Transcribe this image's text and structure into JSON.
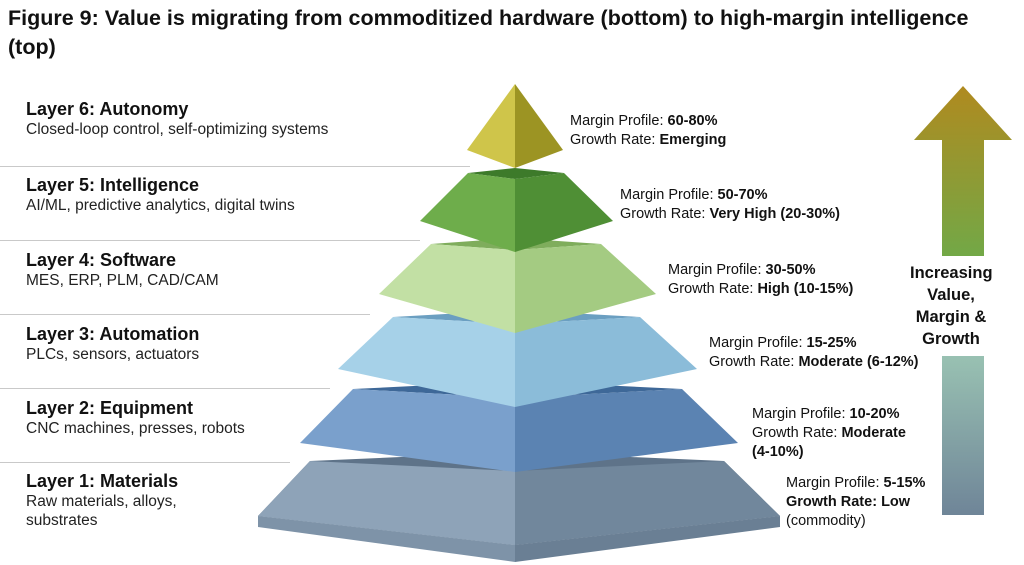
{
  "title": "Figure 9: Value is migrating from commoditized hardware (bottom) to high-margin intelligence (top)",
  "layers": [
    {
      "name": "Layer 6: Autonomy",
      "desc": [
        "Closed-loop control, self-optimizing systems"
      ],
      "margin_label": "Margin Profile: ",
      "margin_value": "60-80%",
      "growth_label": "Growth Rate: ",
      "growth_value": "Emerging",
      "growth_extra": "",
      "color": "#b8b13a"
    },
    {
      "name": "Layer 5: Intelligence",
      "desc": [
        "AI/ML, predictive analytics, digital twins"
      ],
      "margin_label": "Margin Profile: ",
      "margin_value": "50-70%",
      "growth_label": "Growth Rate: ",
      "growth_value": "Very High (20-30%)",
      "growth_extra": "",
      "color": "#5a9a3e"
    },
    {
      "name": "Layer 4: Software",
      "desc": [
        "MES, ERP, PLM, CAD/CAM"
      ],
      "margin_label": "Margin Profile: ",
      "margin_value": "30-50%",
      "growth_label": "Growth Rate: ",
      "growth_value": "High (10-15%)",
      "growth_extra": "",
      "color": "#a9cd86"
    },
    {
      "name": "Layer 3: Automation",
      "desc": [
        "PLCs, sensors, actuators"
      ],
      "margin_label": "Margin Profile: ",
      "margin_value": "15-25%",
      "growth_label": "Growth Rate: ",
      "growth_value": "Moderate (6-12%)",
      "growth_extra": "",
      "color": "#8fbfd9"
    },
    {
      "name": "Layer 2: Equipment",
      "desc": [
        "CNC machines, presses, robots"
      ],
      "margin_label": "Margin Profile: ",
      "margin_value": "10-20%",
      "growth_label": "Growth Rate: ",
      "growth_value": "Moderate",
      "growth_extra": "(4-10%)",
      "color": "#6e95c4"
    },
    {
      "name": "Layer 1: Materials",
      "desc": [
        "Raw materials, alloys,",
        "substrates"
      ],
      "margin_label": "Margin Profile: ",
      "margin_value": "5-15%",
      "growth_label": "Growth Rate: ",
      "growth_value": "Low",
      "growth_extra": "(commodity)",
      "color": "#8a9db3"
    }
  ],
  "arrow_text": [
    "Increasing",
    "Value,",
    "Margin &",
    "Growth"
  ],
  "arrow_colors": {
    "top": "#b08a1f",
    "mid": "#6aac4c",
    "bottom": "#6f8598"
  }
}
